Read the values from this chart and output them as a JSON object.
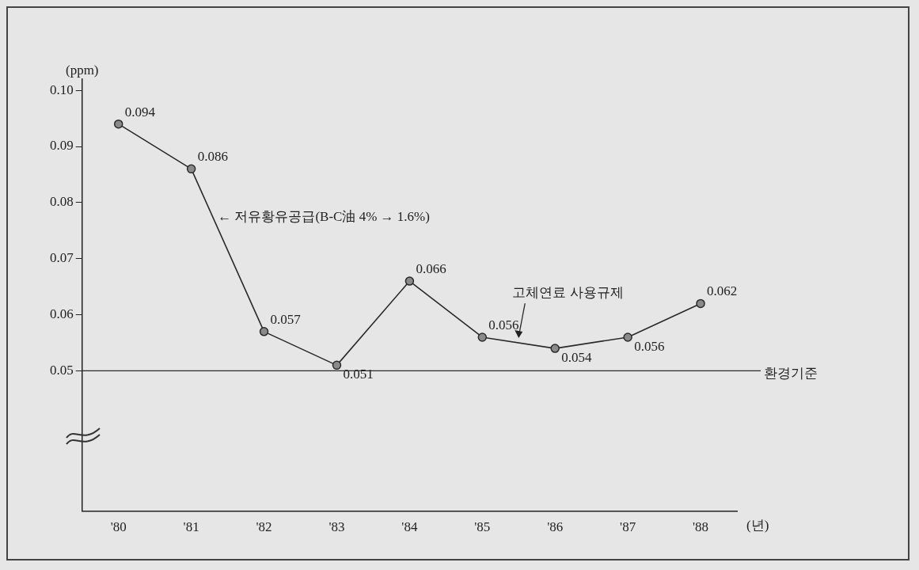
{
  "chart_data": {
    "type": "line",
    "ylabel": "(ppm)",
    "xlabel": "(년)",
    "categories": [
      "'80",
      "'81",
      "'82",
      "'83",
      "'84",
      "'85",
      "'86",
      "'87",
      "'88"
    ],
    "series": [
      {
        "color": "#2a2a2a",
        "values": [
          0.094,
          0.086,
          0.057,
          0.051,
          0.066,
          0.056,
          0.054,
          0.056,
          0.062
        ]
      }
    ],
    "ylim": [
      0.025,
      0.102
    ],
    "yticks": [
      0.05,
      0.06,
      0.07,
      0.08,
      0.09,
      {
        "value": 0.1,
        "label": "0.10"
      }
    ],
    "ref_lines": [
      {
        "axis": "y",
        "value": 0.05,
        "label": "환경기준",
        "color": "#2a2a2a"
      }
    ],
    "annotations": [
      "← 저유황유공급(B-C油 4% → 1.6%)",
      "고체연료 사용규제"
    ],
    "data_labels": true,
    "marker": "circle",
    "line_style": "solid",
    "legend": false,
    "grid": false
  }
}
